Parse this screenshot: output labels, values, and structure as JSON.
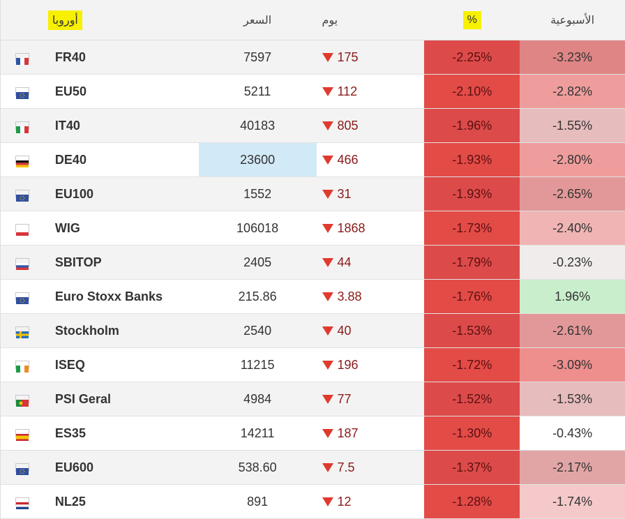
{
  "header": {
    "region": "أوروبا",
    "price": "السعر",
    "day": "يوم",
    "pct": "%",
    "week": "الأسبوعية"
  },
  "rows": [
    {
      "flag": "france",
      "name": "FR40",
      "price": "7597",
      "day": "175",
      "pct": "-2.25%",
      "week": "-3.23%",
      "pct_color": "#dd4a4a",
      "week_color": "#e08585",
      "price_highlight": false
    },
    {
      "flag": "eu",
      "name": "EU50",
      "price": "5211",
      "day": "112",
      "pct": "-2.10%",
      "week": "-2.82%",
      "pct_color": "#e34b47",
      "week_color": "#ee9d9c",
      "price_highlight": false
    },
    {
      "flag": "italy",
      "name": "IT40",
      "price": "40183",
      "day": "805",
      "pct": "-1.96%",
      "week": "-1.55%",
      "pct_color": "#dd4a4a",
      "week_color": "#e7bcbc",
      "price_highlight": false
    },
    {
      "flag": "germany",
      "name": "DE40",
      "price": "23600",
      "day": "466",
      "pct": "-1.93%",
      "week": "-2.80%",
      "pct_color": "#e34b47",
      "week_color": "#ee9d9c",
      "price_highlight": true
    },
    {
      "flag": "eu",
      "name": "EU100",
      "price": "1552",
      "day": "31",
      "pct": "-1.93%",
      "week": "-2.65%",
      "pct_color": "#dd4a4a",
      "week_color": "#e29898",
      "price_highlight": false
    },
    {
      "flag": "poland",
      "name": "WIG",
      "price": "106018",
      "day": "1868",
      "pct": "-1.73%",
      "week": "-2.40%",
      "pct_color": "#e34b47",
      "week_color": "#f0b4b4",
      "price_highlight": false
    },
    {
      "flag": "slovenia",
      "name": "SBITOP",
      "price": "2405",
      "day": "44",
      "pct": "-1.79%",
      "week": "-0.23%",
      "pct_color": "#dd4a4a",
      "week_color": "#f1ecec",
      "price_highlight": false
    },
    {
      "flag": "eu",
      "name": "Euro Stoxx Banks",
      "price": "215.86",
      "day": "3.88",
      "pct": "-1.76%",
      "week": "1.96%",
      "pct_color": "#e34b47",
      "week_color": "#c9eecc",
      "price_highlight": false
    },
    {
      "flag": "sweden",
      "name": "Stockholm",
      "price": "2540",
      "day": "40",
      "pct": "-1.53%",
      "week": "-2.61%",
      "pct_color": "#dd4a4a",
      "week_color": "#e29898",
      "price_highlight": false
    },
    {
      "flag": "ireland",
      "name": "ISEQ",
      "price": "11215",
      "day": "196",
      "pct": "-1.72%",
      "week": "-3.09%",
      "pct_color": "#e34b47",
      "week_color": "#ee8e8d",
      "price_highlight": false
    },
    {
      "flag": "portugal",
      "name": "PSI Geral",
      "price": "4984",
      "day": "77",
      "pct": "-1.52%",
      "week": "-1.53%",
      "pct_color": "#dd4a4a",
      "week_color": "#e7bcbc",
      "price_highlight": false
    },
    {
      "flag": "spain",
      "name": "ES35",
      "price": "14211",
      "day": "187",
      "pct": "-1.30%",
      "week": "-0.43%",
      "pct_color": "#e34b47",
      "week_color": "#ffffff",
      "price_highlight": false
    },
    {
      "flag": "eu",
      "name": "EU600",
      "price": "538.60",
      "day": "7.5",
      "pct": "-1.37%",
      "week": "-2.17%",
      "pct_color": "#dd4a4a",
      "week_color": "#e2a5a5",
      "price_highlight": false
    },
    {
      "flag": "netherlands",
      "name": "NL25",
      "price": "891",
      "day": "12",
      "pct": "-1.28%",
      "week": "-1.74%",
      "pct_color": "#e34b47",
      "week_color": "#f5c9c9",
      "price_highlight": false
    }
  ]
}
